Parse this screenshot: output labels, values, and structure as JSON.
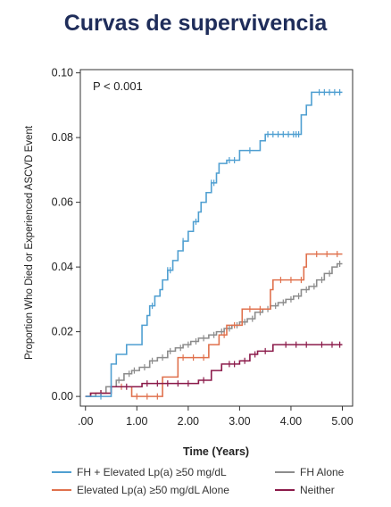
{
  "page": {
    "title": "Curvas de supervivencia"
  },
  "chart_data": {
    "type": "line",
    "xlabel": "Time (Years)",
    "ylabel": "Proportion Who Died or Experienced ASCVD Event",
    "xlim": [
      -0.1,
      5.2
    ],
    "ylim": [
      -0.003,
      0.101
    ],
    "xticks": [
      0,
      1,
      2,
      3,
      4,
      5
    ],
    "xtick_labels": [
      ".00",
      "1.00",
      "2.00",
      "3.00",
      "4.00",
      "5.00"
    ],
    "yticks": [
      0,
      0.02,
      0.04,
      0.06,
      0.08,
      0.1
    ],
    "ytick_labels": [
      "0.00",
      "0.02",
      "0.04",
      "0.06",
      "0.08",
      "0.10"
    ],
    "annotation": "P < 0.001",
    "step": true,
    "legend_position": "bottom",
    "series": [
      {
        "name": "FH + Elevated Lp(a) ≥50 mg/dL",
        "color": "#4f9fd1",
        "x": [
          0,
          0.5,
          0.5,
          0.6,
          0.6,
          0.8,
          0.8,
          1.1,
          1.1,
          1.2,
          1.2,
          1.25,
          1.25,
          1.35,
          1.35,
          1.45,
          1.45,
          1.5,
          1.5,
          1.6,
          1.6,
          1.7,
          1.7,
          1.8,
          1.8,
          1.9,
          1.9,
          2.0,
          2.0,
          2.1,
          2.1,
          2.2,
          2.2,
          2.25,
          2.25,
          2.35,
          2.35,
          2.45,
          2.45,
          2.55,
          2.55,
          2.6,
          2.6,
          2.75,
          2.75,
          3.0,
          3.0,
          3.4,
          3.4,
          3.5,
          3.5,
          3.6,
          3.6,
          3.7,
          3.7,
          4.2,
          4.2,
          4.3,
          4.3,
          4.4,
          4.4,
          5.0
        ],
        "y": [
          0,
          0,
          0.01,
          0.01,
          0.013,
          0.013,
          0.016,
          0.016,
          0.022,
          0.022,
          0.025,
          0.025,
          0.028,
          0.028,
          0.031,
          0.031,
          0.033,
          0.033,
          0.036,
          0.036,
          0.039,
          0.039,
          0.042,
          0.042,
          0.045,
          0.045,
          0.048,
          0.048,
          0.051,
          0.051,
          0.054,
          0.054,
          0.057,
          0.057,
          0.06,
          0.06,
          0.063,
          0.063,
          0.066,
          0.066,
          0.069,
          0.069,
          0.072,
          0.072,
          0.073,
          0.073,
          0.076,
          0.076,
          0.079,
          0.079,
          0.081,
          0.081,
          0.081,
          0.081,
          0.081,
          0.081,
          0.087,
          0.087,
          0.09,
          0.09,
          0.094,
          0.094
        ],
        "censor_x": [
          0.3,
          1.3,
          1.6,
          1.65,
          1.9,
          2.15,
          2.45,
          2.5,
          2.8,
          2.9,
          3.2,
          3.55,
          3.65,
          3.75,
          3.85,
          3.95,
          4.05,
          4.1,
          4.15,
          4.55,
          4.65,
          4.75,
          4.85,
          4.95
        ]
      },
      {
        "name": "FH Alone",
        "color": "#8c8c8c",
        "x": [
          0,
          0.2,
          0.2,
          0.4,
          0.4,
          0.6,
          0.6,
          0.75,
          0.75,
          0.9,
          0.9,
          1.05,
          1.05,
          1.25,
          1.25,
          1.4,
          1.4,
          1.6,
          1.6,
          1.75,
          1.75,
          1.9,
          1.9,
          2.05,
          2.05,
          2.2,
          2.2,
          2.4,
          2.4,
          2.55,
          2.55,
          2.7,
          2.7,
          2.85,
          2.85,
          3.0,
          3.0,
          3.15,
          3.15,
          3.3,
          3.3,
          3.45,
          3.45,
          3.6,
          3.6,
          3.75,
          3.75,
          3.9,
          3.9,
          4.05,
          4.05,
          4.2,
          4.2,
          4.35,
          4.35,
          4.5,
          4.5,
          4.65,
          4.65,
          4.8,
          4.8,
          4.9,
          4.9,
          5.0
        ],
        "y": [
          0,
          0,
          0.001,
          0.001,
          0.003,
          0.003,
          0.005,
          0.005,
          0.007,
          0.007,
          0.008,
          0.008,
          0.009,
          0.009,
          0.011,
          0.011,
          0.012,
          0.012,
          0.014,
          0.014,
          0.015,
          0.015,
          0.016,
          0.016,
          0.017,
          0.017,
          0.018,
          0.018,
          0.019,
          0.019,
          0.02,
          0.02,
          0.021,
          0.021,
          0.022,
          0.022,
          0.023,
          0.023,
          0.024,
          0.024,
          0.026,
          0.026,
          0.027,
          0.027,
          0.028,
          0.028,
          0.029,
          0.029,
          0.03,
          0.03,
          0.031,
          0.031,
          0.033,
          0.033,
          0.034,
          0.034,
          0.036,
          0.036,
          0.038,
          0.038,
          0.04,
          0.04,
          0.041,
          0.041
        ],
        "censor_x": [
          0.3,
          0.5,
          0.65,
          0.85,
          0.95,
          1.15,
          1.3,
          1.5,
          1.65,
          1.85,
          2.0,
          2.15,
          2.3,
          2.5,
          2.65,
          2.8,
          2.95,
          3.1,
          3.25,
          3.4,
          3.55,
          3.7,
          3.85,
          4.0,
          4.15,
          4.3,
          4.45,
          4.6,
          4.75,
          4.95
        ]
      },
      {
        "name": "Elevated Lp(a) ≥50 mg/dL Alone",
        "color": "#e0714d",
        "x": [
          0,
          0.1,
          0.1,
          0.5,
          0.5,
          0.9,
          0.9,
          1.5,
          1.5,
          1.8,
          1.8,
          2.4,
          2.4,
          2.6,
          2.6,
          2.75,
          2.75,
          3.05,
          3.05,
          3.6,
          3.6,
          3.65,
          3.65,
          4.25,
          4.25,
          4.3,
          4.3,
          5.0
        ],
        "y": [
          0,
          0,
          0.001,
          0.001,
          0.003,
          0.003,
          0,
          0,
          0.006,
          0.006,
          0.012,
          0.012,
          0.016,
          0.016,
          0.019,
          0.019,
          0.022,
          0.022,
          0.027,
          0.027,
          0.033,
          0.033,
          0.036,
          0.036,
          0.04,
          0.04,
          0.044,
          0.044
        ],
        "censor_x": [
          0.3,
          0.7,
          1.0,
          1.2,
          1.4,
          1.9,
          2.1,
          2.3,
          2.7,
          2.9,
          3.2,
          3.4,
          3.8,
          4.0,
          4.2,
          4.5,
          4.7,
          4.9
        ]
      },
      {
        "name": "Neither",
        "color": "#8b1a4a",
        "x": [
          0,
          0.1,
          0.1,
          0.5,
          0.5,
          1.1,
          1.1,
          2.2,
          2.2,
          2.45,
          2.45,
          2.65,
          2.65,
          3.0,
          3.0,
          3.2,
          3.2,
          3.35,
          3.35,
          3.65,
          3.65,
          3.75,
          3.75,
          4.45,
          4.45,
          5.0
        ],
        "y": [
          0,
          0,
          0.001,
          0.001,
          0.003,
          0.003,
          0.004,
          0.004,
          0.005,
          0.005,
          0.008,
          0.008,
          0.01,
          0.01,
          0.011,
          0.011,
          0.013,
          0.013,
          0.014,
          0.014,
          0.016,
          0.016,
          0.016,
          0.016,
          0.016,
          0.016
        ],
        "censor_x": [
          0.3,
          0.8,
          1.2,
          1.4,
          1.6,
          1.8,
          2.0,
          2.3,
          2.8,
          2.9,
          3.1,
          3.3,
          3.5,
          3.9,
          4.1,
          4.3,
          4.6,
          4.8,
          4.95
        ]
      }
    ]
  }
}
